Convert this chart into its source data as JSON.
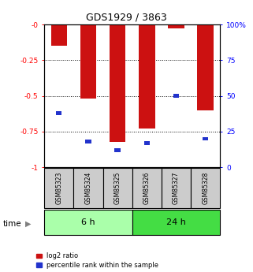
{
  "title": "GDS1929 / 3863",
  "categories": [
    "GSM85323",
    "GSM85324",
    "GSM85325",
    "GSM85326",
    "GSM85327",
    "GSM85328"
  ],
  "log2_ratio": [
    -0.15,
    -0.52,
    -0.82,
    -0.73,
    -0.03,
    -0.6
  ],
  "percentile_rank": [
    38,
    18,
    12,
    17,
    50,
    20
  ],
  "groups": [
    {
      "label": "6 h",
      "indices": [
        0,
        1,
        2
      ],
      "color": "#aaffaa"
    },
    {
      "label": "24 h",
      "indices": [
        3,
        4,
        5
      ],
      "color": "#44dd44"
    }
  ],
  "ylim_left": [
    -1.0,
    0.0
  ],
  "ylim_right": [
    0,
    100
  ],
  "yticks_left": [
    0.0,
    -0.25,
    -0.5,
    -0.75,
    -1.0
  ],
  "ytick_labels_left": [
    "-0",
    "-0.25",
    "-0.5",
    "-0.75",
    "-1"
  ],
  "yticks_right": [
    0,
    25,
    50,
    75,
    100
  ],
  "ytick_labels_right": [
    "0",
    "25",
    "50",
    "75",
    "100%"
  ],
  "bar_color_red": "#cc1111",
  "bar_color_blue": "#2233cc",
  "bar_width": 0.55,
  "blue_bar_width": 0.2,
  "blue_bar_height": 0.025,
  "grid_yticks": [
    -0.25,
    -0.5,
    -0.75
  ],
  "time_label": "time",
  "legend_red_label": "log2 ratio",
  "legend_blue_label": "percentile rank within the sample",
  "bg_color_sample": "#cccccc",
  "bg_color_plot": "#ffffff",
  "title_fontsize": 9,
  "tick_fontsize": 6.5,
  "label_fontsize": 5.5,
  "group_fontsize": 8,
  "legend_fontsize": 6
}
